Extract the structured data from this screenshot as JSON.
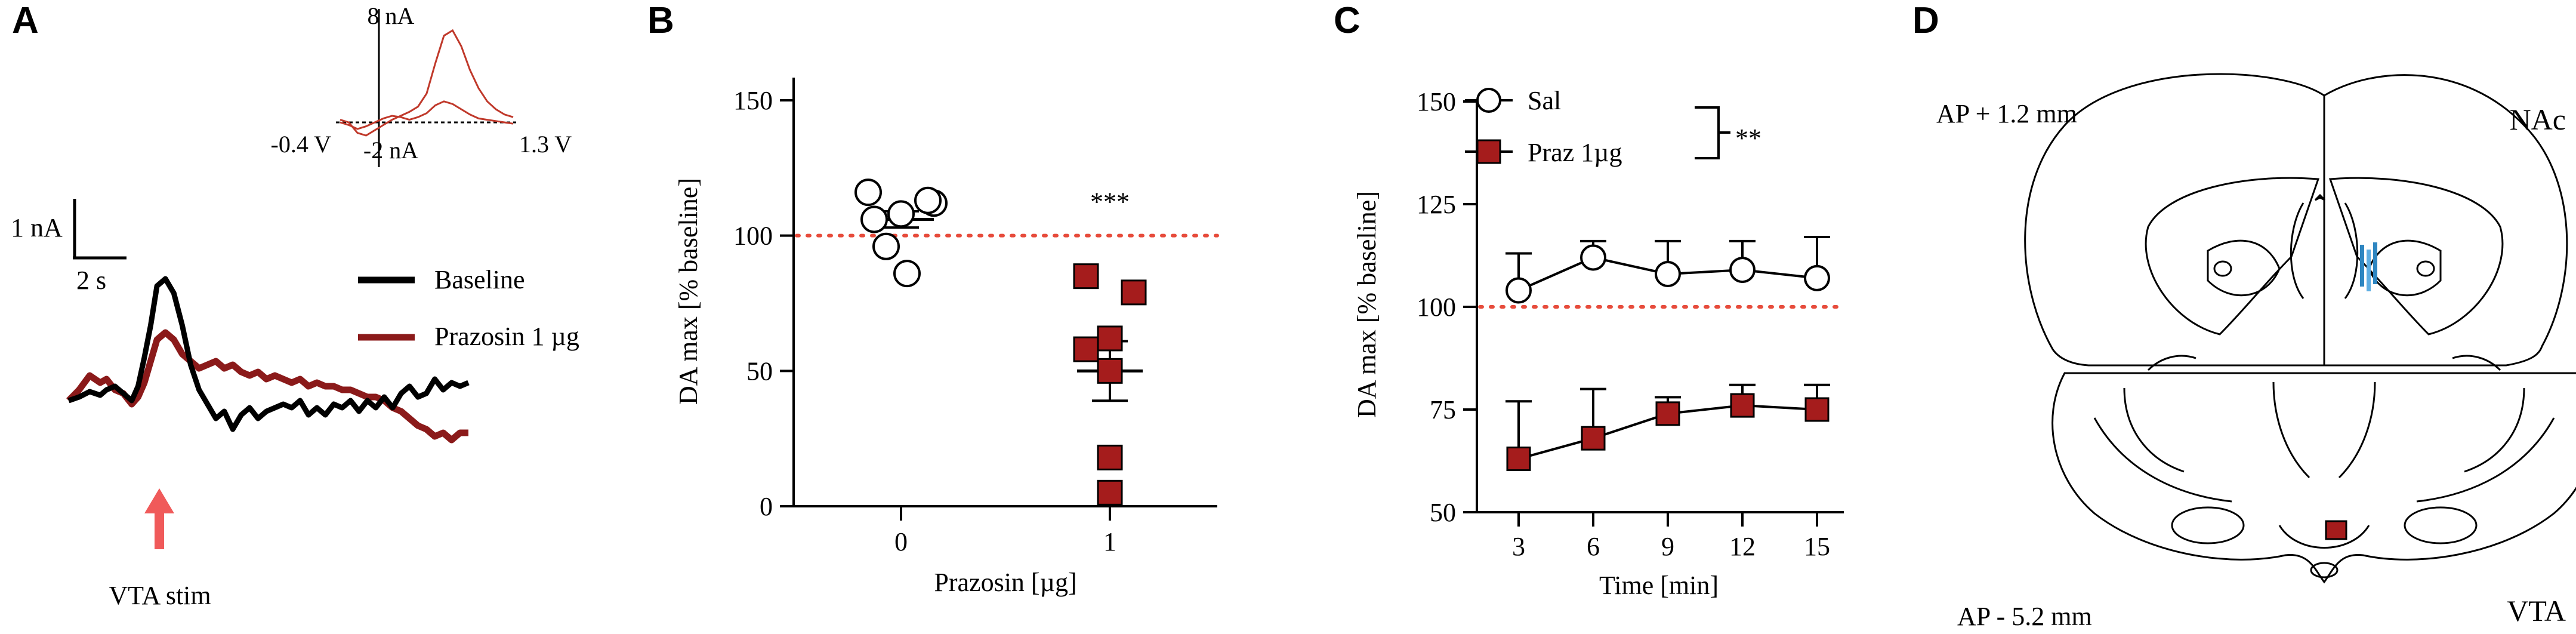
{
  "panels": {
    "a": "A",
    "b": "B",
    "c": "C",
    "d": "D"
  },
  "chart_data": [
    {
      "type": "line",
      "panel": "A",
      "title": "",
      "x": [
        -3.0,
        -2.5,
        -2.0,
        -1.5,
        -1.2,
        -0.8,
        -0.4,
        0.0,
        0.3,
        0.6,
        0.9,
        1.2,
        1.6,
        2.0,
        2.4,
        2.8,
        3.2,
        3.6,
        4.0,
        4.4,
        4.8,
        5.2,
        5.6,
        6.0,
        6.4,
        6.8,
        7.2,
        7.6,
        8.0,
        8.4,
        8.8,
        9.2,
        9.6,
        10.0,
        10.4,
        10.8,
        11.2,
        11.6,
        12.0,
        12.4,
        12.8,
        13.2,
        13.6,
        14.0,
        14.4,
        14.8,
        15.2,
        15.6,
        16.0
      ],
      "series": [
        {
          "name": "Baseline",
          "color": "#000000",
          "values": [
            -0.1,
            0.0,
            0.15,
            0.05,
            0.2,
            0.3,
            0.1,
            -0.1,
            0.3,
            1.1,
            2.0,
            3.1,
            3.3,
            2.9,
            2.0,
            0.9,
            0.2,
            -0.2,
            -0.6,
            -0.4,
            -0.9,
            -0.5,
            -0.3,
            -0.6,
            -0.4,
            -0.3,
            -0.2,
            -0.3,
            -0.1,
            -0.5,
            -0.3,
            -0.5,
            -0.2,
            -0.3,
            -0.1,
            -0.4,
            -0.1,
            -0.3,
            0.0,
            -0.3,
            0.1,
            0.3,
            0.0,
            0.1,
            0.5,
            0.2,
            0.4,
            0.3,
            0.4
          ]
        },
        {
          "name": "Prazosin 1 µg",
          "color": "#8b1a1a",
          "values": [
            -0.1,
            0.2,
            0.6,
            0.4,
            0.5,
            0.2,
            0.1,
            -0.2,
            0.0,
            0.4,
            1.0,
            1.6,
            1.8,
            1.6,
            1.2,
            1.0,
            0.8,
            0.9,
            1.0,
            0.8,
            0.9,
            0.7,
            0.6,
            0.7,
            0.5,
            0.6,
            0.5,
            0.4,
            0.5,
            0.3,
            0.4,
            0.3,
            0.3,
            0.2,
            0.2,
            0.1,
            0.0,
            0.0,
            -0.1,
            -0.3,
            -0.4,
            -0.6,
            -0.8,
            -0.9,
            -1.1,
            -1.0,
            -1.2,
            -1.0,
            -1.0
          ]
        }
      ],
      "scale_bar": {
        "y_label": "1 nA",
        "x_label": "2 s"
      },
      "annotation": "VTA stim",
      "legend": [
        "Baseline",
        "Prazosin 1 µg"
      ],
      "inset": {
        "type": "line",
        "y_top_label": "8 nA",
        "y_bottom_label": "-2 nA",
        "x_left_label": "-0.4 V",
        "x_right_label": "1.3 V",
        "series": [
          {
            "name": "Prazosin 1 µg",
            "color": "#c0392b",
            "values": [
              0.2,
              0.0,
              -0.8,
              -1.0,
              -0.6,
              -0.2,
              0.2,
              0.5,
              0.8,
              1.2,
              2.2,
              4.5,
              6.6,
              7.0,
              5.8,
              4.0,
              2.6,
              1.6,
              1.0,
              0.6,
              0.4
            ]
          },
          {
            "name": "Baseline",
            "color": "#c0392b",
            "values": [
              0.0,
              -0.2,
              -0.5,
              -0.3,
              0.0,
              0.3,
              0.5,
              0.4,
              0.2,
              0.4,
              0.7,
              1.3,
              1.6,
              1.4,
              1.0,
              0.6,
              0.3,
              0.2,
              0.1,
              0.0,
              -0.1
            ]
          }
        ]
      }
    },
    {
      "type": "scatter",
      "panel": "B",
      "xlabel": "Prazosin [µg]",
      "ylabel": "DA max [% baseline]",
      "categories": [
        "0",
        "1"
      ],
      "ylim": [
        0,
        150
      ],
      "yticks": [
        "0",
        "50",
        "100",
        "150"
      ],
      "reference_line": 100,
      "significance": "***",
      "series": [
        {
          "name": "0",
          "color": "#ffffff",
          "points": [
            116,
            108,
            112,
            113,
            106,
            96,
            86
          ],
          "mean": 106,
          "sem": 3
        },
        {
          "name": "1",
          "color": "#a51c1c",
          "points": [
            85,
            79,
            62,
            58,
            50,
            18,
            5
          ],
          "mean": 50,
          "sem": 11
        }
      ]
    },
    {
      "type": "line",
      "panel": "C",
      "xlabel": "Time [min]",
      "ylabel": "DA max [% baseline]",
      "x": [
        3,
        6,
        9,
        12,
        15
      ],
      "xticks": [
        "3",
        "6",
        "9",
        "12",
        "15"
      ],
      "ylim": [
        50,
        150
      ],
      "yticks": [
        "50",
        "75",
        "100",
        "125",
        "150"
      ],
      "reference_line": 100,
      "significance": "**",
      "legend": [
        "Sal",
        "Praz 1µg"
      ],
      "series": [
        {
          "name": "Sal",
          "color": "#ffffff",
          "values": [
            104,
            112,
            108,
            109,
            107
          ],
          "err": [
            9,
            4,
            8,
            7,
            10
          ]
        },
        {
          "name": "Praz 1µg",
          "color": "#a51c1c",
          "values": [
            63,
            68,
            74,
            76,
            75
          ],
          "err": [
            14,
            12,
            4,
            5,
            6
          ]
        }
      ]
    }
  ],
  "panel_d": {
    "top_left_label": "AP + 1.2 mm",
    "top_right_label": "NAc",
    "bottom_left_label": "AP - 5.2 mm",
    "bottom_right_label": "VTA"
  }
}
